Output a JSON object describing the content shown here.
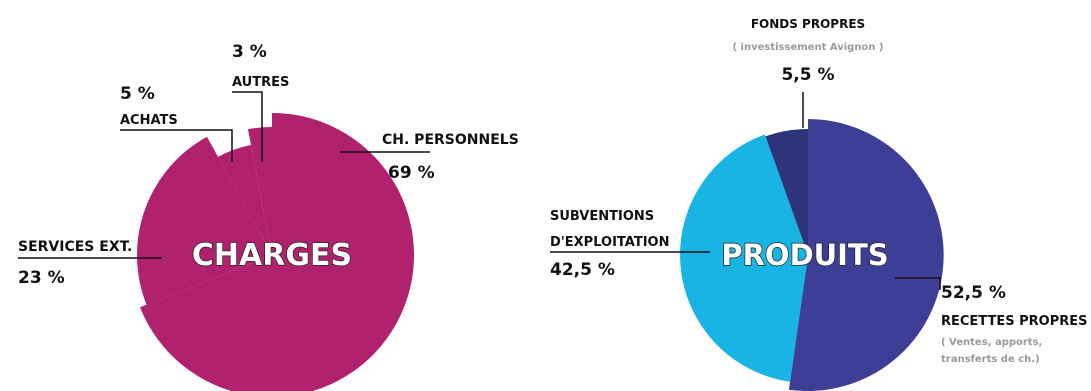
{
  "chart_data": [
    {
      "type": "pie",
      "title": "CHARGES",
      "slices": [
        {
          "name": "CH. PERSONNELS",
          "value": 69,
          "label": "69 %",
          "color": "#b0226d"
        },
        {
          "name": "SERVICES EXT.",
          "value": 23,
          "label": "23 %",
          "color": "#b0226d"
        },
        {
          "name": "ACHATS",
          "value": 5,
          "label": "5 %",
          "color": "#b0226d"
        },
        {
          "name": "AUTRES",
          "value": 3,
          "label": "3 %",
          "color": "#b0226d"
        }
      ]
    },
    {
      "type": "pie",
      "title": "PRODUITS",
      "slices": [
        {
          "name": "RECETTES PROPRES",
          "value": 52.5,
          "label": "52,5 %",
          "note": "( Ventes, apports,",
          "note2": "transferts de ch.)",
          "color": "#3d3f97"
        },
        {
          "name": "SUBVENTIONS",
          "name2": "D'EXPLOITATION",
          "value": 42.5,
          "label": "42,5 %",
          "color": "#18b4e3"
        },
        {
          "name": "FONDS PROPRES",
          "value": 5.5,
          "label": "5,5 %",
          "note": "( investissement Avignon )",
          "color": "#2e3479"
        }
      ]
    }
  ]
}
